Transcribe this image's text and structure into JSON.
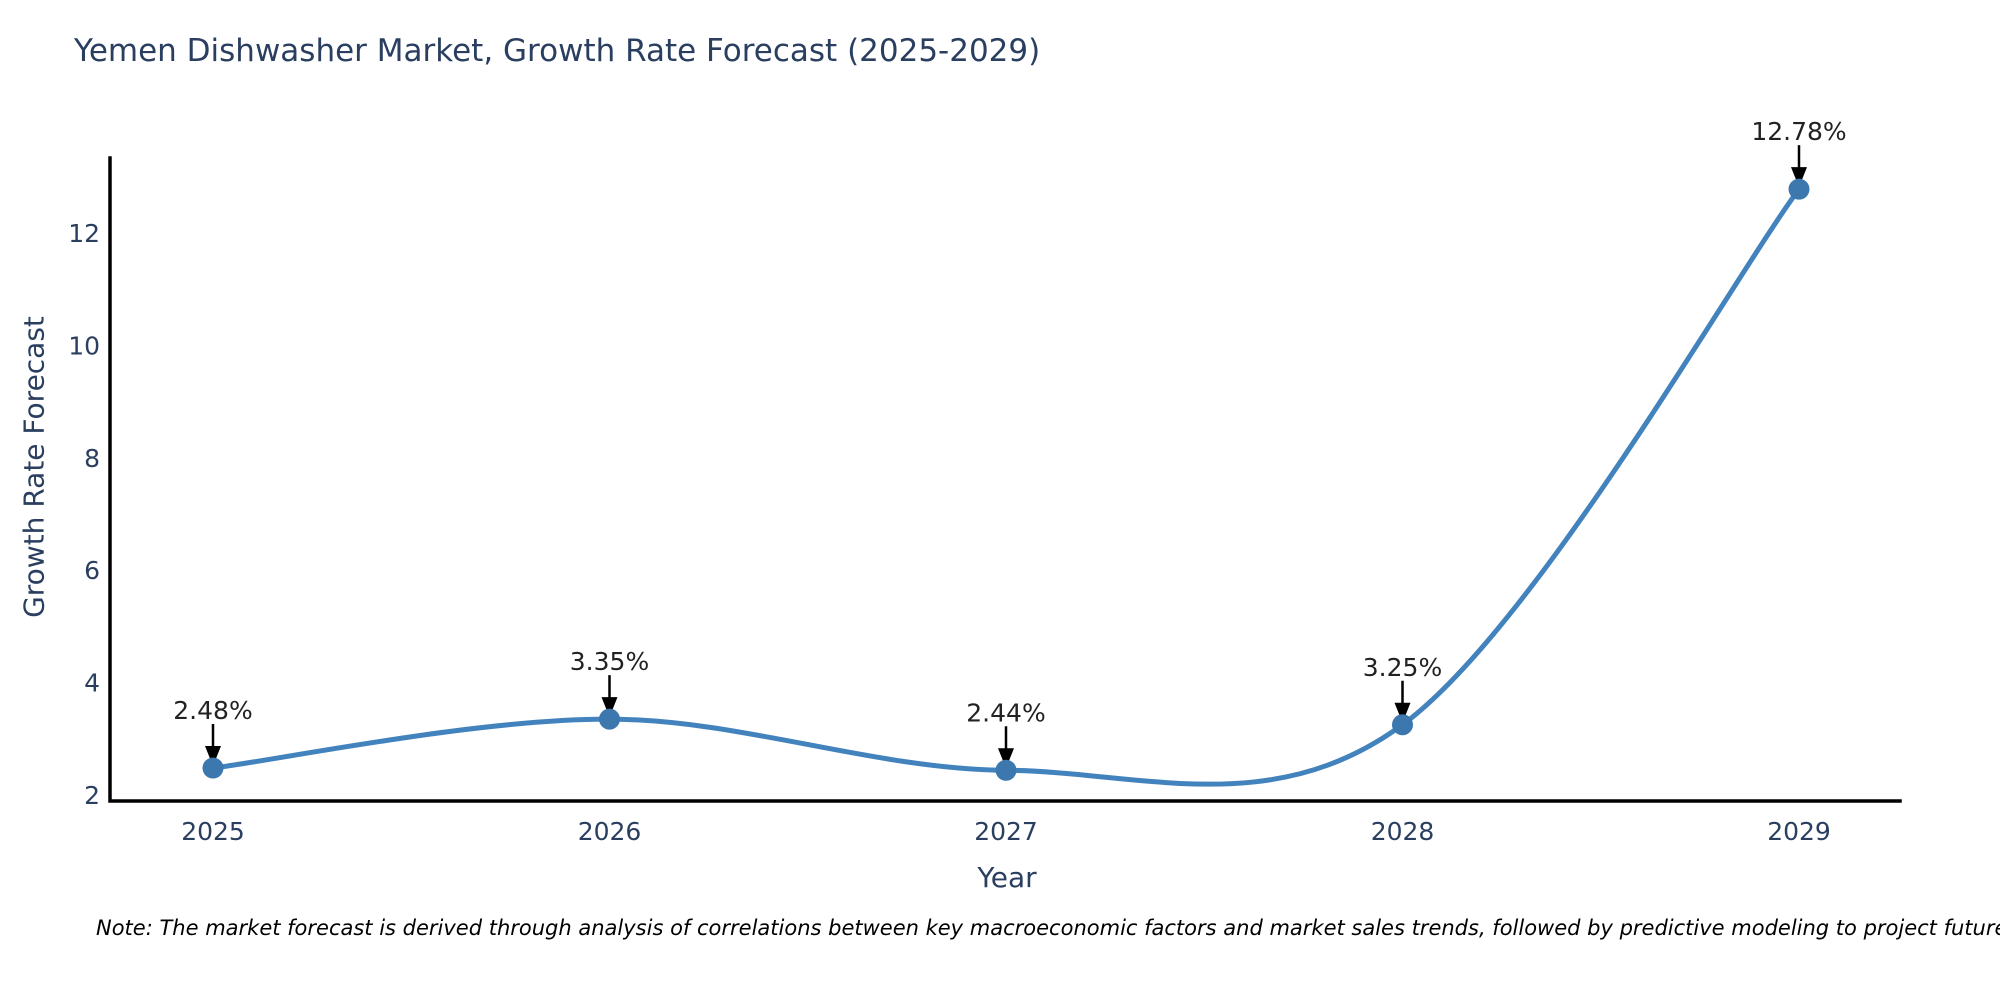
{
  "chart_data": {
    "type": "line",
    "title": "Yemen Dishwasher Market, Growth Rate Forecast (2025-2029)",
    "xlabel": "Year",
    "ylabel": "Growth Rate Forecast",
    "x": [
      2025,
      2026,
      2027,
      2028,
      2029
    ],
    "xticklabels": [
      "2025",
      "2026",
      "2027",
      "2028",
      "2029"
    ],
    "series": [
      {
        "name": "Growth Rate Forecast",
        "values": [
          2.48,
          3.35,
          2.44,
          3.25,
          12.78
        ],
        "point_labels": [
          "2.48%",
          "3.35%",
          "2.44%",
          "3.25%",
          "12.78%"
        ]
      }
    ],
    "yticks": [
      2,
      4,
      6,
      8,
      10,
      12
    ],
    "ylim": [
      2,
      13.3
    ],
    "grid": false,
    "legend_position": "none",
    "line_style": "spline",
    "colors": {
      "line": "#4383bd",
      "marker": "#3c77ae",
      "axis": "#000000",
      "tick_text": "#2a3f5f",
      "annotation_text": "#222222",
      "arrow": "#000000"
    }
  },
  "note": "Note: The market forecast is derived through analysis of correlations between key macroeconomic factors and market sales trends, followed by predictive modeling to project future sales"
}
